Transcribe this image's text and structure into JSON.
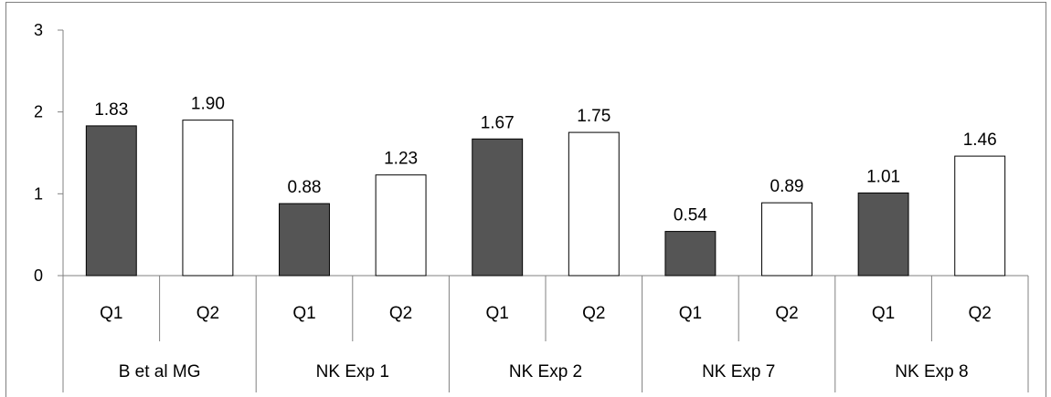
{
  "chart_data": {
    "type": "bar",
    "title": "",
    "xlabel": "",
    "ylabel": "",
    "ylim": [
      0,
      3
    ],
    "yticks": [
      "0",
      "1",
      "2",
      "3"
    ],
    "grid": false,
    "legend": "none",
    "groups": [
      "B et al MG",
      "NK Exp 1",
      "NK Exp 2",
      "NK Exp 7",
      "NK Exp 8"
    ],
    "subcategories": [
      "Q1",
      "Q2"
    ],
    "bars": [
      {
        "group": "B et al MG",
        "category": "Q1",
        "value": 1.83,
        "label": "1.83",
        "fill": "dark"
      },
      {
        "group": "B et al MG",
        "category": "Q2",
        "value": 1.9,
        "label": "1.90",
        "fill": "white"
      },
      {
        "group": "NK Exp 1",
        "category": "Q1",
        "value": 0.88,
        "label": "0.88",
        "fill": "dark"
      },
      {
        "group": "NK Exp 1",
        "category": "Q2",
        "value": 1.23,
        "label": "1.23",
        "fill": "white"
      },
      {
        "group": "NK Exp 2",
        "category": "Q1",
        "value": 1.67,
        "label": "1.67",
        "fill": "dark"
      },
      {
        "group": "NK Exp 2",
        "category": "Q2",
        "value": 1.75,
        "label": "1.75",
        "fill": "white"
      },
      {
        "group": "NK Exp 7",
        "category": "Q1",
        "value": 0.54,
        "label": "0.54",
        "fill": "dark"
      },
      {
        "group": "NK Exp 7",
        "category": "Q2",
        "value": 0.89,
        "label": "0.89",
        "fill": "white"
      },
      {
        "group": "NK Exp 8",
        "category": "Q1",
        "value": 1.01,
        "label": "1.01",
        "fill": "dark"
      },
      {
        "group": "NK Exp 8",
        "category": "Q2",
        "value": 1.46,
        "label": "1.46",
        "fill": "white"
      }
    ],
    "colors": {
      "dark": "#555555",
      "white": "#ffffff",
      "outline": "#000000",
      "axis": "#808080"
    }
  }
}
